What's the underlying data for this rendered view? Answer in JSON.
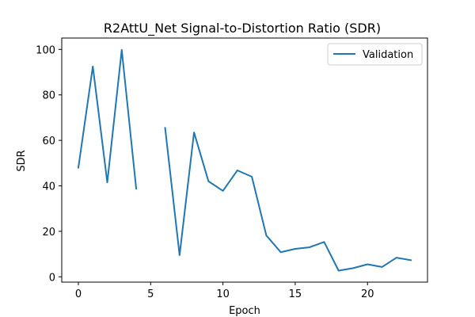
{
  "chart_data": {
    "type": "line",
    "title": "R2AttU_Net Signal-to-Distortion Ratio (SDR)",
    "xlabel": "Epoch",
    "ylabel": "SDR",
    "xlim": [
      -1.15,
      24.15
    ],
    "ylim": [
      -2.35,
      105.0
    ],
    "xticks": [
      0,
      5,
      10,
      15,
      20
    ],
    "yticks": [
      0,
      20,
      40,
      60,
      80,
      100
    ],
    "grid": false,
    "legend": "top-right",
    "series": [
      {
        "name": "Validation",
        "color": "#1f77b4",
        "x": [
          0,
          1,
          2,
          3,
          4,
          5,
          6,
          7,
          8,
          9,
          10,
          11,
          12,
          13,
          14,
          15,
          16,
          17,
          18,
          19,
          20,
          21,
          22,
          23
        ],
        "y": [
          48,
          92.5,
          41.5,
          99.8,
          38.8,
          null,
          65.5,
          9.5,
          63.5,
          42,
          37.8,
          46.8,
          44,
          18.2,
          10.8,
          12.3,
          13,
          15.3,
          2.7,
          3.8,
          5.5,
          4.3,
          8.4,
          7.3
        ]
      }
    ]
  }
}
